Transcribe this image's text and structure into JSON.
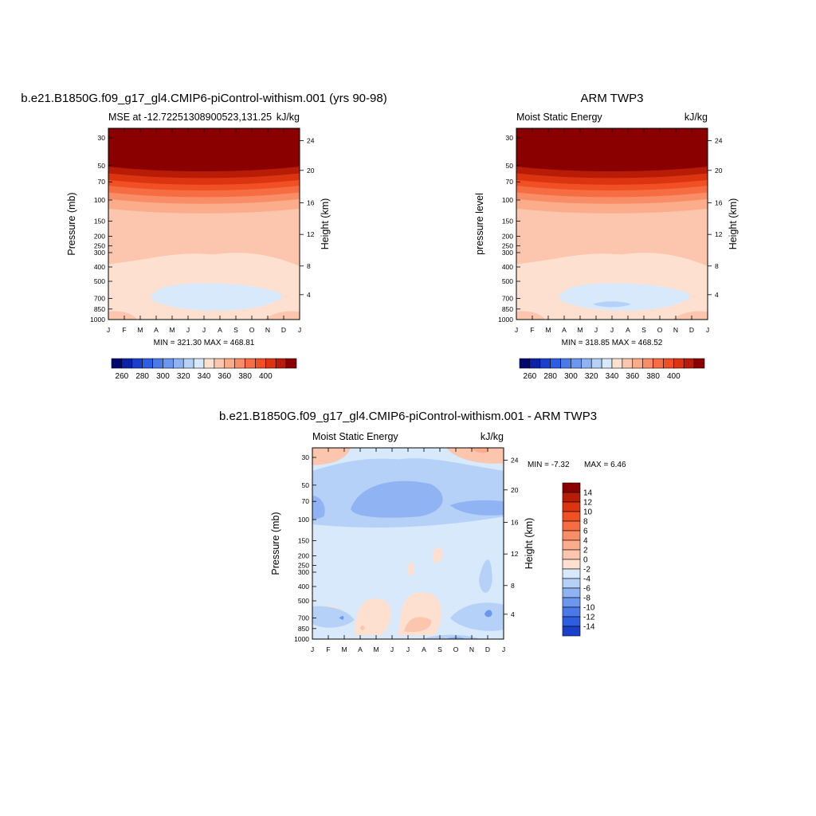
{
  "chart_data": [
    {
      "type": "contour",
      "title": "b.e21.B1850G.f09_g17_gl4.CMIP6-piControl-withism.001 (yrs 90-98)",
      "left_subtitle": "MSE at -12.72251308900523,131.25",
      "right_subtitle": "kJ/kg",
      "ylabel": "Pressure (mb)",
      "ylabel_right": "Height (km)",
      "x_ticks": [
        "J",
        "F",
        "M",
        "A",
        "M",
        "J",
        "J",
        "A",
        "S",
        "O",
        "N",
        "D",
        "J"
      ],
      "y_ticks": [
        "30",
        "50",
        "70",
        "100",
        "150",
        "200",
        "250",
        "300",
        "400",
        "500",
        "700",
        "850",
        "1000"
      ],
      "y_ticks_right": [
        "24",
        "20",
        "16",
        "12",
        "8",
        "4"
      ],
      "stats": "MIN = 321.30 MAX = 468.81",
      "colorbar_labels": [
        "260",
        "280",
        "300",
        "320",
        "340",
        "360",
        "380",
        "400"
      ]
    },
    {
      "type": "contour",
      "title": "ARM TWP3",
      "left_subtitle": "Moist Static Energy",
      "right_subtitle": "kJ/kg",
      "ylabel": "pressure level",
      "ylabel_right": "Height (km)",
      "x_ticks": [
        "J",
        "F",
        "M",
        "A",
        "M",
        "J",
        "J",
        "A",
        "S",
        "O",
        "N",
        "D",
        "J"
      ],
      "y_ticks": [
        "30",
        "50",
        "70",
        "100",
        "150",
        "200",
        "250",
        "300",
        "400",
        "500",
        "700",
        "850",
        "1000"
      ],
      "y_ticks_right": [
        "24",
        "20",
        "16",
        "12",
        "8",
        "4"
      ],
      "stats": "MIN = 318.85 MAX = 468.52",
      "colorbar_labels": [
        "260",
        "280",
        "300",
        "320",
        "340",
        "360",
        "380",
        "400"
      ]
    },
    {
      "type": "contour",
      "title": "b.e21.B1850G.f09_g17_gl4.CMIP6-piControl-withism.001 - ARM TWP3",
      "left_subtitle": "Moist Static Energy",
      "right_subtitle": "kJ/kg",
      "ylabel": "Pressure (mb)",
      "ylabel_right": "Height (km)",
      "x_ticks": [
        "J",
        "F",
        "M",
        "A",
        "M",
        "J",
        "J",
        "A",
        "S",
        "O",
        "N",
        "D",
        "J"
      ],
      "y_ticks": [
        "30",
        "50",
        "70",
        "100",
        "150",
        "200",
        "250",
        "300",
        "400",
        "500",
        "700",
        "850",
        "1000"
      ],
      "y_ticks_right": [
        "24",
        "20",
        "16",
        "12",
        "8",
        "4"
      ],
      "stats_min": "MIN =  -7.32",
      "stats_max": "MAX =   6.46",
      "colorbar_labels": [
        "14",
        "12",
        "10",
        "8",
        "6",
        "4",
        "2",
        "0",
        "-2",
        "-4",
        "-6",
        "-8",
        "-10",
        "-12",
        "-14"
      ]
    }
  ],
  "palette": {
    "warm": [
      "#fde0d0",
      "#fcc5ae",
      "#fbac8b",
      "#f98d67",
      "#f76d43",
      "#f14f24",
      "#dc3411",
      "#b81b06",
      "#8a0000"
    ],
    "cool": [
      "#d7e9fb",
      "#b6d1f8",
      "#90b4f3",
      "#6b97ee",
      "#4a7ae9",
      "#2f5de0",
      "#1a3fca",
      "#0b22a6",
      "#02066f"
    ]
  }
}
